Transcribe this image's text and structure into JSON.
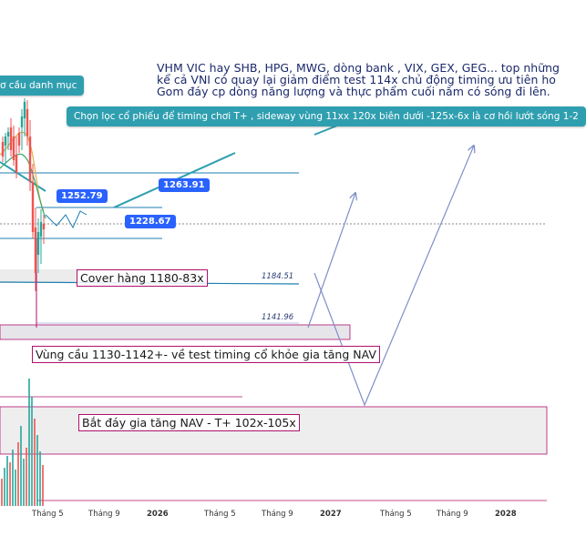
{
  "chart_data": {
    "type": "candlestick",
    "x_ticks": [
      "Tháng 5",
      "Tháng 9",
      "2026",
      "Tháng 5",
      "Tháng 9",
      "2027",
      "Tháng 5",
      "Tháng 9",
      "2028"
    ],
    "price_tags": [
      "1263.91",
      "1252.79",
      "1228.67"
    ],
    "price_levels": [
      "1184.51",
      "1141.96"
    ],
    "notes": {
      "top_left_callout": "ơ cầu danh mục",
      "top_right_text": [
        "VHM VIC hay SHB, HPG, MWG, dòng bank , VIX, GEX, GEG... top những",
        "kể cả VNI có quay lại giảm điểm test 114x chủ động timing ưu tiên ho",
        "Gom đáy cp dòng năng lượng và thực phẩm cuối năm có sóng đi lên."
      ],
      "callout_main": "Chọn lọc cổ phiếu để timing chơi T+ , sideway vùng 11xx 120x biên dưới -125x-6x là cơ hồi lướt sóng 1-2",
      "zone_cover": "Cover hàng 1180-83x",
      "zone_demand": "Vùng cầu 1130-1142+- về test timing cổ khỏe gia tăng NAV",
      "zone_bottom": "Bắt đáy gia tăng NAV - T+ 102x-105x"
    }
  }
}
